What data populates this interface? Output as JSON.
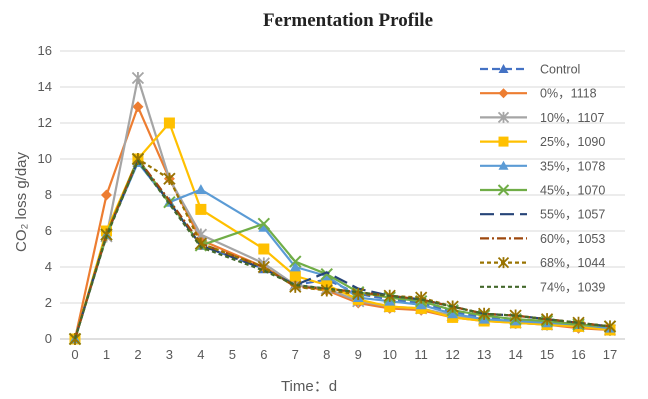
{
  "chart_data": {
    "type": "line",
    "title": "Fermentation Profile",
    "xlabel": "Time：d",
    "ylabel": "CO₂ loss g/day",
    "xlim": [
      0,
      17
    ],
    "ylim": [
      0,
      16
    ],
    "y_ticks": [
      0,
      2,
      4,
      6,
      8,
      10,
      12,
      14,
      16
    ],
    "x_ticks": [
      0,
      1,
      2,
      3,
      4,
      5,
      6,
      7,
      8,
      9,
      10,
      11,
      12,
      13,
      14,
      15,
      16,
      17
    ],
    "grid": "horizontal",
    "legend_position": "right",
    "series": [
      {
        "name": "Control",
        "color": "#4472c4",
        "dash": "8 4",
        "marker": "triangle",
        "x": [
          0,
          1,
          2,
          3,
          4,
          6,
          7,
          8,
          9,
          10,
          11,
          12,
          13,
          14,
          15,
          16,
          17
        ],
        "y": [
          0,
          5.8,
          9.9,
          7.6,
          5.2,
          3.9,
          3.0,
          3.3,
          2.5,
          2.2,
          2.0,
          1.5,
          1.2,
          1.0,
          0.9,
          0.8,
          0.6
        ]
      },
      {
        "name": "0%，1118",
        "color": "#ed7d31",
        "dash": "",
        "marker": "diamond",
        "x": [
          0,
          1,
          2,
          3,
          4,
          6,
          7,
          8,
          9,
          10,
          11,
          12,
          13,
          14,
          15,
          16,
          17
        ],
        "y": [
          0,
          8.0,
          12.9,
          8.9,
          5.5,
          4.0,
          3.0,
          2.7,
          2.0,
          1.7,
          1.6,
          1.2,
          1.0,
          0.9,
          0.8,
          0.6,
          0.5
        ]
      },
      {
        "name": "10%，1107",
        "color": "#a5a5a5",
        "dash": "",
        "marker": "star",
        "x": [
          0,
          1,
          2,
          3,
          4,
          6,
          7,
          8,
          9,
          10,
          11,
          12,
          13,
          14,
          15,
          16,
          17
        ],
        "y": [
          0,
          5.7,
          14.5,
          8.9,
          5.8,
          4.2,
          3.0,
          2.8,
          2.1,
          1.8,
          1.7,
          1.3,
          1.1,
          0.9,
          0.8,
          0.7,
          0.5
        ]
      },
      {
        "name": "25%，1090",
        "color": "#ffc000",
        "dash": "",
        "marker": "square",
        "x": [
          0,
          1,
          2,
          3,
          4,
          6,
          7,
          8,
          9,
          10,
          11,
          12,
          13,
          14,
          15,
          16,
          17
        ],
        "y": [
          0,
          6.0,
          10.0,
          12.0,
          7.2,
          5.0,
          3.5,
          3.0,
          2.2,
          1.8,
          1.7,
          1.2,
          1.0,
          0.9,
          0.8,
          0.7,
          0.5
        ]
      },
      {
        "name": "35%，1078",
        "color": "#5b9bd5",
        "dash": "",
        "marker": "triangle",
        "x": [
          0,
          1,
          2,
          3,
          4,
          6,
          7,
          8,
          9,
          10,
          11,
          12,
          13,
          14,
          15,
          16,
          17
        ],
        "y": [
          0,
          5.8,
          9.8,
          7.6,
          8.3,
          6.2,
          4.0,
          3.5,
          2.3,
          2.1,
          1.9,
          1.4,
          1.1,
          1.0,
          0.9,
          0.8,
          0.6
        ]
      },
      {
        "name": "45%，1070",
        "color": "#70ad47",
        "dash": "",
        "marker": "x",
        "x": [
          0,
          1,
          2,
          3,
          4,
          6,
          7,
          8,
          9,
          10,
          11,
          12,
          13,
          14,
          15,
          16,
          17
        ],
        "y": [
          0,
          5.8,
          10.0,
          7.6,
          5.2,
          6.4,
          4.3,
          3.6,
          2.6,
          2.3,
          2.1,
          1.6,
          1.3,
          1.1,
          1.0,
          0.8,
          0.7
        ]
      },
      {
        "name": "55%，1057",
        "color": "#264478",
        "dash": "14 6",
        "marker": "none",
        "x": [
          0,
          1,
          2,
          3,
          4,
          6,
          7,
          8,
          9,
          10,
          11,
          12,
          13,
          14,
          15,
          16,
          17
        ],
        "y": [
          0,
          5.8,
          9.9,
          7.6,
          5.2,
          3.9,
          3.0,
          3.7,
          2.8,
          2.4,
          2.2,
          1.8,
          1.4,
          1.3,
          1.1,
          0.9,
          0.7
        ]
      },
      {
        "name": "60%，1053",
        "color": "#9e480e",
        "dash": "9 3 2 3",
        "marker": "none",
        "x": [
          0,
          1,
          2,
          3,
          4,
          6,
          7,
          8,
          9,
          10,
          11,
          12,
          13,
          14,
          15,
          16,
          17
        ],
        "y": [
          0,
          5.8,
          10.0,
          7.7,
          5.3,
          4.0,
          2.9,
          2.8,
          2.6,
          2.4,
          2.2,
          1.8,
          1.4,
          1.3,
          1.1,
          0.9,
          0.7
        ]
      },
      {
        "name": "68%，1044",
        "color": "#997300",
        "dash": "4 3",
        "marker": "star",
        "x": [
          0,
          1,
          2,
          3,
          4,
          6,
          7,
          8,
          9,
          10,
          11,
          12,
          13,
          14,
          15,
          16,
          17
        ],
        "y": [
          0,
          5.8,
          10.0,
          8.9,
          5.3,
          4.0,
          2.9,
          2.7,
          2.5,
          2.4,
          2.3,
          1.8,
          1.4,
          1.3,
          1.1,
          0.9,
          0.7
        ]
      },
      {
        "name": "74%，1039",
        "color": "#43682b",
        "dash": "4 3",
        "marker": "none",
        "x": [
          0,
          1,
          2,
          3,
          4,
          6,
          7,
          8,
          9,
          10,
          11,
          12,
          13,
          14,
          15,
          16,
          17
        ],
        "y": [
          0,
          5.7,
          9.9,
          7.5,
          5.1,
          3.8,
          3.0,
          2.8,
          2.6,
          2.4,
          2.2,
          1.8,
          1.4,
          1.3,
          1.1,
          0.9,
          0.7
        ]
      }
    ]
  }
}
